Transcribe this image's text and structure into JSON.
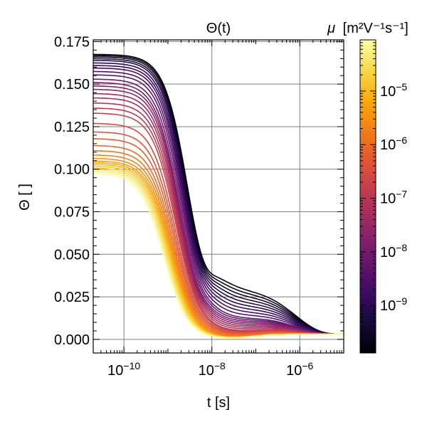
{
  "chart_data": {
    "type": "line",
    "title": "Θ(t)",
    "xlabel": "t [s]",
    "ylabel": "Θ [ ]",
    "x_scale": "log",
    "xlim": [
      2e-11,
      1e-05
    ],
    "ylim": [
      -0.008,
      0.176
    ],
    "xticks": [
      {
        "value": 1e-10,
        "base": "10",
        "exp": "−10"
      },
      {
        "value": 1e-08,
        "base": "10",
        "exp": "−8"
      },
      {
        "value": 1e-06,
        "base": "10",
        "exp": "−6"
      }
    ],
    "yticks": [
      {
        "value": 0.0,
        "label": "0.000"
      },
      {
        "value": 0.025,
        "label": "0.025"
      },
      {
        "value": 0.05,
        "label": "0.050"
      },
      {
        "value": 0.075,
        "label": "0.075"
      },
      {
        "value": 0.1,
        "label": "0.100"
      },
      {
        "value": 0.125,
        "label": "0.125"
      },
      {
        "value": 0.15,
        "label": "0.150"
      },
      {
        "value": 0.175,
        "label": "0.175"
      }
    ],
    "grid": true,
    "colormap": "inferno",
    "colorbar": {
      "label_prefix": "μ",
      "label_unit": "[m²V⁻¹s⁻¹]",
      "scale": "log",
      "range": [
        1.3e-10,
        9e-05
      ],
      "ticks": [
        {
          "value": 1e-09,
          "base": "10",
          "exp": "−9"
        },
        {
          "value": 1e-08,
          "base": "10",
          "exp": "−8"
        },
        {
          "value": 1e-07,
          "base": "10",
          "exp": "−7"
        },
        {
          "value": 1e-06,
          "base": "10",
          "exp": "−6"
        },
        {
          "value": 1e-05,
          "base": "10",
          "exp": "−5"
        }
      ]
    },
    "series": [
      {
        "mu": 1.4e-10,
        "theta0": 0.1675,
        "tau": 3e-09,
        "tail": 0.03
      },
      {
        "mu": 2e-10,
        "theta0": 0.1668,
        "tau": 2.9e-09,
        "tail": 0.028
      },
      {
        "mu": 3e-10,
        "theta0": 0.166,
        "tau": 2.8e-09,
        "tail": 0.026
      },
      {
        "mu": 4.5e-10,
        "theta0": 0.165,
        "tau": 2.7e-09,
        "tail": 0.024
      },
      {
        "mu": 7e-10,
        "theta0": 0.164,
        "tau": 2.6e-09,
        "tail": 0.022
      },
      {
        "mu": 1e-09,
        "theta0": 0.1625,
        "tau": 2.5e-09,
        "tail": 0.02
      },
      {
        "mu": 1.5e-09,
        "theta0": 0.161,
        "tau": 2.4e-09,
        "tail": 0.018
      },
      {
        "mu": 2.2e-09,
        "theta0": 0.1595,
        "tau": 2.3e-09,
        "tail": 0.016
      },
      {
        "mu": 3.3e-09,
        "theta0": 0.1575,
        "tau": 2.2e-09,
        "tail": 0.014
      },
      {
        "mu": 5e-09,
        "theta0": 0.1555,
        "tau": 2.1e-09,
        "tail": 0.012
      },
      {
        "mu": 7.5e-09,
        "theta0": 0.153,
        "tau": 2e-09,
        "tail": 0.011
      },
      {
        "mu": 1.1e-08,
        "theta0": 0.151,
        "tau": 1.9e-09,
        "tail": 0.01
      },
      {
        "mu": 1.7e-08,
        "theta0": 0.149,
        "tau": 1.85e-09,
        "tail": 0.009
      },
      {
        "mu": 2.5e-08,
        "theta0": 0.147,
        "tau": 1.8e-09,
        "tail": 0.008
      },
      {
        "mu": 3.8e-08,
        "theta0": 0.1445,
        "tau": 1.75e-09,
        "tail": 0.007
      },
      {
        "mu": 5.7e-08,
        "theta0": 0.142,
        "tau": 1.7e-09,
        "tail": 0.006
      },
      {
        "mu": 8.5e-08,
        "theta0": 0.139,
        "tau": 1.65e-09,
        "tail": 0.005
      },
      {
        "mu": 1.3e-07,
        "theta0": 0.136,
        "tau": 1.6e-09,
        "tail": 0.004
      },
      {
        "mu": 1.9e-07,
        "theta0": 0.133,
        "tau": 1.55e-09,
        "tail": 0.0035
      },
      {
        "mu": 2.9e-07,
        "theta0": 0.127,
        "tau": 1.5e-09,
        "tail": 0.003
      },
      {
        "mu": 4.3e-07,
        "theta0": 0.122,
        "tau": 1.45e-09,
        "tail": 0.0025
      },
      {
        "mu": 6.5e-07,
        "theta0": 0.118,
        "tau": 1.4e-09,
        "tail": 0.002
      },
      {
        "mu": 9.7e-07,
        "theta0": 0.114,
        "tau": 1.35e-09,
        "tail": 0.0015
      },
      {
        "mu": 1.45e-06,
        "theta0": 0.111,
        "tau": 1.3e-09,
        "tail": 0.001
      },
      {
        "mu": 2.2e-06,
        "theta0": 0.1085,
        "tau": 1.25e-09,
        "tail": 0.0005
      },
      {
        "mu": 3.3e-06,
        "theta0": 0.1065,
        "tau": 1.2e-09,
        "tail": 0.0
      },
      {
        "mu": 5e-06,
        "theta0": 0.105,
        "tau": 1.15e-09,
        "tail": 0.0
      },
      {
        "mu": 7.5e-06,
        "theta0": 0.104,
        "tau": 1.1e-09,
        "tail": 0.0
      },
      {
        "mu": 1.1e-05,
        "theta0": 0.103,
        "tau": 1.05e-09,
        "tail": 0.0
      },
      {
        "mu": 1.7e-05,
        "theta0": 0.102,
        "tau": 1e-09,
        "tail": 0.0
      },
      {
        "mu": 2.5e-05,
        "theta0": 0.101,
        "tau": 9.5e-10,
        "tail": 0.0
      },
      {
        "mu": 3.8e-05,
        "theta0": 0.1,
        "tau": 9e-10,
        "tail": 0.0
      },
      {
        "mu": 5.7e-05,
        "theta0": 0.099,
        "tau": 8.5e-10,
        "tail": 0.0
      },
      {
        "mu": 8.5e-05,
        "theta0": 0.098,
        "tau": 8e-10,
        "tail": 0.0
      }
    ]
  }
}
